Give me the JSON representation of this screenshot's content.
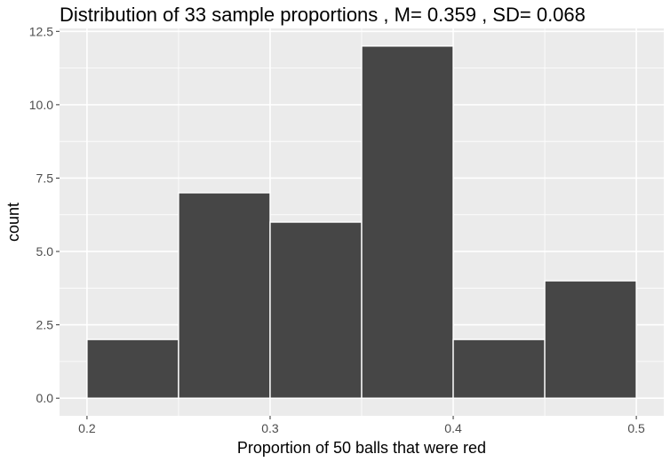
{
  "chart_data": {
    "type": "bar",
    "title": "Distribution of 33 sample proportions , M= 0.359 , SD= 0.068",
    "xlabel": "Proportion of 50 balls that were red",
    "ylabel": "count",
    "bins": [
      {
        "start": 0.2,
        "end": 0.25,
        "count": 2
      },
      {
        "start": 0.25,
        "end": 0.3,
        "count": 7
      },
      {
        "start": 0.3,
        "end": 0.35,
        "count": 6
      },
      {
        "start": 0.35,
        "end": 0.4,
        "count": 12
      },
      {
        "start": 0.4,
        "end": 0.45,
        "count": 2
      },
      {
        "start": 0.45,
        "end": 0.5,
        "count": 4
      }
    ],
    "x_ticks": [
      "0.2",
      "0.3",
      "0.4",
      "0.5"
    ],
    "x_tick_values": [
      0.2,
      0.3,
      0.4,
      0.5
    ],
    "y_ticks": [
      "0.0",
      "2.5",
      "5.0",
      "7.5",
      "10.0",
      "12.5"
    ],
    "y_tick_values": [
      0,
      2.5,
      5,
      7.5,
      10,
      12.5
    ],
    "xlim": [
      0.185,
      0.515
    ],
    "ylim": [
      -0.6,
      12.6
    ],
    "grid": true,
    "colors": {
      "panel_background": "#ebebeb",
      "grid_line": "#ffffff",
      "bar_fill": "#464646",
      "bar_outline": "#ffffff",
      "tick_mark": "#333333",
      "tick_label": "#4d4d4d"
    }
  }
}
